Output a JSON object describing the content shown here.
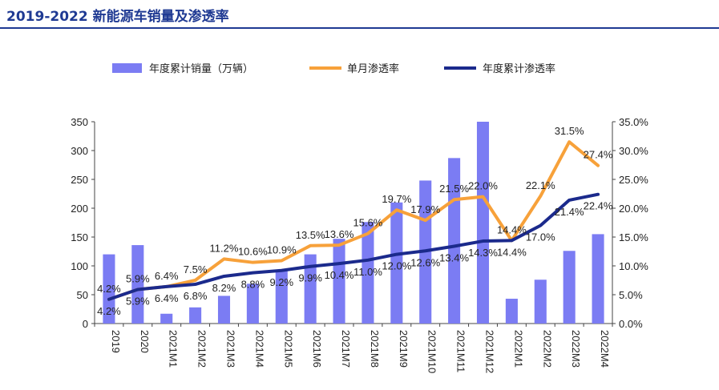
{
  "header": {
    "title": "2019-2022 新能源车销量及渗透率"
  },
  "colors": {
    "bar": "#7b7cf3",
    "monthly": "#f7a13a",
    "annual": "#1b2a8c",
    "title": "#1f3a93"
  },
  "chart_data": {
    "type": "bar",
    "title": "2019-2022 新能源车销量及渗透率",
    "categories": [
      "2019",
      "2020",
      "2021M1",
      "2021M2",
      "2021M3",
      "2021M4",
      "2021M5",
      "2021M6",
      "2021M7",
      "2021M8",
      "2021M9",
      "2021M10",
      "2021M11",
      "2021M12",
      "2022M1",
      "2022M2",
      "2022M3",
      "2022M4"
    ],
    "y_left": {
      "ylim": [
        0,
        350
      ],
      "ticks": [
        "0",
        "50",
        "100",
        "150",
        "200",
        "250",
        "300",
        "350"
      ],
      "tick_values": [
        0,
        50,
        100,
        150,
        200,
        250,
        300,
        350
      ]
    },
    "y_right": {
      "ylim": [
        0,
        35
      ],
      "ticks": [
        "0.0%",
        "5.0%",
        "10.0%",
        "15.0%",
        "20.0%",
        "25.0%",
        "30.0%",
        "35.0%"
      ],
      "tick_values": [
        0,
        5,
        10,
        15,
        20,
        25,
        30,
        35
      ]
    },
    "legend": {
      "placement": "top",
      "items": [
        "年度累计销量（万辆）",
        "单月渗透率",
        "年度累计渗透率"
      ]
    },
    "series": [
      {
        "name": "年度累计销量（万辆）",
        "kind": "bar",
        "axis": "left",
        "values": [
          120,
          136,
          17,
          28,
          48,
          69,
          92,
          120,
          147,
          176,
          210,
          248,
          287,
          352,
          43,
          76,
          126,
          155
        ]
      },
      {
        "name": "单月渗透率",
        "kind": "line",
        "axis": "right",
        "values": [
          4.2,
          5.9,
          6.4,
          7.5,
          11.2,
          10.6,
          10.9,
          13.5,
          13.6,
          15.6,
          19.7,
          17.9,
          21.5,
          22.0,
          14.4,
          22.1,
          31.5,
          27.4
        ],
        "labels": [
          "4.2%",
          "5.9%",
          "6.4%",
          "7.5%",
          "11.2%",
          "10.6%",
          "10.9%",
          "13.5%",
          "13.6%",
          "15.6%",
          "19.7%",
          "17.9%",
          "21.5%",
          "22.0%",
          "14.4%",
          "22.1%",
          "31.5%",
          "27.4%"
        ]
      },
      {
        "name": "年度累计渗透率",
        "kind": "line",
        "axis": "right",
        "values": [
          4.2,
          5.9,
          6.4,
          6.8,
          8.2,
          8.8,
          9.2,
          9.9,
          10.4,
          11.0,
          12.0,
          12.6,
          13.4,
          14.3,
          14.4,
          17.0,
          21.4,
          22.4
        ],
        "labels": [
          "4.2%",
          "5.9%",
          "6.4%",
          "6.8%",
          "8.2%",
          "8.8%",
          "9.2%",
          "9.9%",
          "10.4%",
          "11.0%",
          "12.0%",
          "12.6%",
          "13.4%",
          "14.3%",
          "14.4%",
          "17.0%",
          "21.4%",
          "22.4%"
        ]
      }
    ]
  }
}
